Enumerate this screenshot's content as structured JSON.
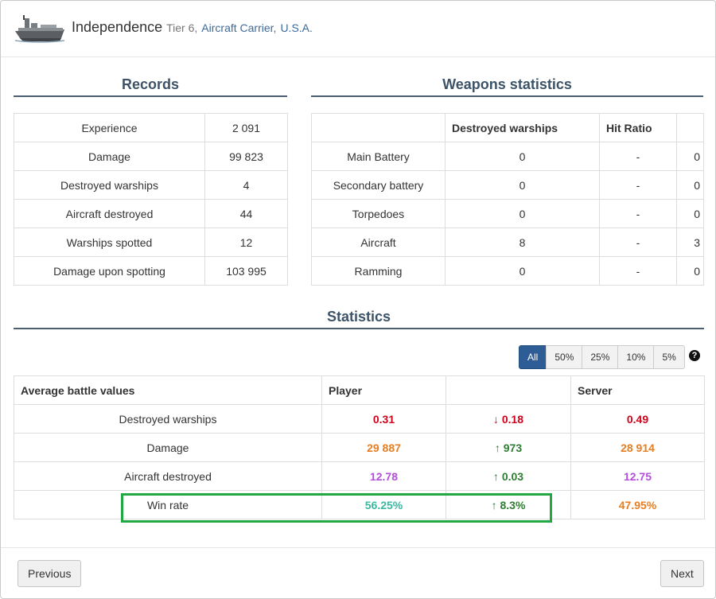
{
  "ship": {
    "name": "Independence",
    "tier": "Tier 6,",
    "class": "Aircraft Carrier,",
    "nation": "U.S.A."
  },
  "records": {
    "title": "Records",
    "rows": [
      {
        "label": "Experience",
        "value": "2 091"
      },
      {
        "label": "Damage",
        "value": "99 823"
      },
      {
        "label": "Destroyed warships",
        "value": "4"
      },
      {
        "label": "Aircraft destroyed",
        "value": "44"
      },
      {
        "label": "Warships spotted",
        "value": "12"
      },
      {
        "label": "Damage upon spotting",
        "value": "103 995"
      }
    ]
  },
  "weapons": {
    "title": "Weapons statistics",
    "headers": [
      "",
      "Destroyed warships",
      "Hit Ratio",
      ""
    ],
    "rows": [
      {
        "weapon": "Main Battery",
        "destroyed": "0",
        "hit_ratio": "-",
        "extra": "0"
      },
      {
        "weapon": "Secondary battery",
        "destroyed": "0",
        "hit_ratio": "-",
        "extra": "0"
      },
      {
        "weapon": "Torpedoes",
        "destroyed": "0",
        "hit_ratio": "-",
        "extra": "0"
      },
      {
        "weapon": "Aircraft",
        "destroyed": "8",
        "hit_ratio": "-",
        "extra": "3"
      },
      {
        "weapon": "Ramming",
        "destroyed": "0",
        "hit_ratio": "-",
        "extra": "0"
      }
    ]
  },
  "statistics": {
    "title": "Statistics",
    "filters": [
      "All",
      "50%",
      "25%",
      "10%",
      "5%"
    ],
    "active_filter": "All",
    "help_icon": "question-circle-icon",
    "headers": [
      "Average battle values",
      "Player",
      "",
      "Server"
    ],
    "rows": [
      {
        "label": "Destroyed warships",
        "player": "0.31",
        "diff_arrow": "↓",
        "diff": "0.18",
        "server": "0.49",
        "color": "#d0021b",
        "diff_color": "#d0021b"
      },
      {
        "label": "Damage",
        "player": "29 887",
        "diff_arrow": "↑",
        "diff": "973",
        "server": "28 914",
        "color": "#e67e22",
        "diff_color": "#2e7d32"
      },
      {
        "label": "Aircraft destroyed",
        "player": "12.78",
        "diff_arrow": "↑",
        "diff": "0.03",
        "server": "12.75",
        "color": "#b44fdb",
        "diff_color": "#2e7d32"
      },
      {
        "label": "Win rate",
        "player": "56.25%",
        "diff_arrow": "↑",
        "diff": "8.3%",
        "server": "47.95%",
        "color": "#3ab8a0",
        "server_color": "#e67e22",
        "diff_color": "#2e7d32"
      }
    ]
  },
  "footer": {
    "previous": "Previous",
    "next": "Next"
  },
  "colors": {
    "accent": "#2e5d96",
    "highlight": "#21a845"
  }
}
